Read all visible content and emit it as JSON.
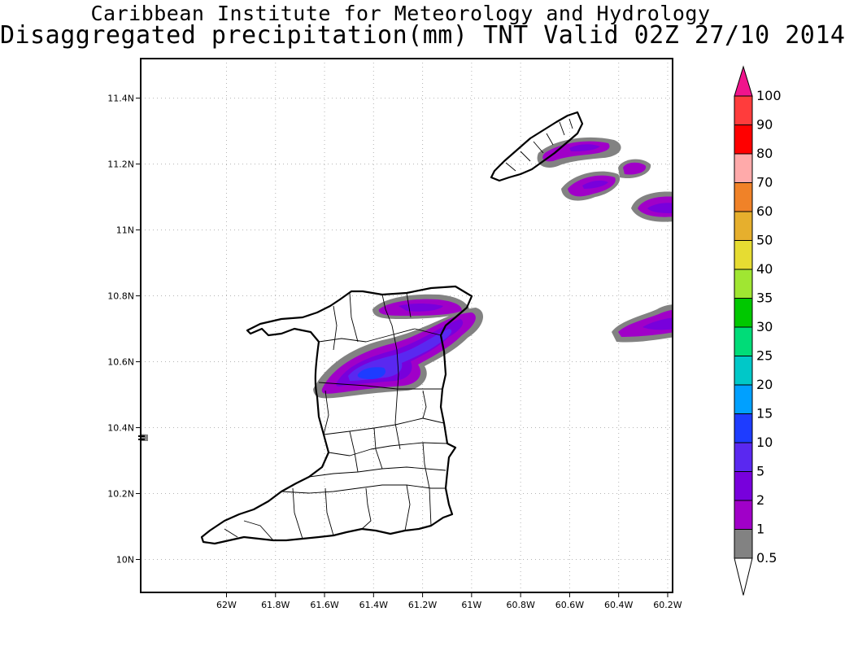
{
  "header": {
    "title": "Caribbean Institute for Meteorology and Hydrology",
    "subtitle": "Disaggregated precipitation(mm) TNT Valid 02Z 27/10 2014"
  },
  "map": {
    "lon_range": [
      -62.35,
      -60.18
    ],
    "lat_range": [
      9.9,
      11.52
    ],
    "x_ticks": [
      {
        "value": -62.0,
        "label": "62W"
      },
      {
        "value": -61.8,
        "label": "61.8W"
      },
      {
        "value": -61.6,
        "label": "61.6W"
      },
      {
        "value": -61.4,
        "label": "61.4W"
      },
      {
        "value": -61.2,
        "label": "61.2W"
      },
      {
        "value": -61.0,
        "label": "61W"
      },
      {
        "value": -60.8,
        "label": "60.8W"
      },
      {
        "value": -60.6,
        "label": "60.6W"
      },
      {
        "value": -60.4,
        "label": "60.4W"
      },
      {
        "value": -60.2,
        "label": "60.2W"
      }
    ],
    "y_ticks": [
      {
        "value": 10.0,
        "label": "10N"
      },
      {
        "value": 10.2,
        "label": "10.2N"
      },
      {
        "value": 10.4,
        "label": "10.4N"
      },
      {
        "value": 10.6,
        "label": "10.6N"
      },
      {
        "value": 10.8,
        "label": "10.8N"
      },
      {
        "value": 11.0,
        "label": "11N"
      },
      {
        "value": 11.2,
        "label": "11.2N"
      },
      {
        "value": 11.4,
        "label": "11.4N"
      }
    ],
    "grid": true
  },
  "colorbar": {
    "levels": [
      {
        "label": "0.5",
        "color": "#ffffff"
      },
      {
        "label": "1",
        "color": "#828282"
      },
      {
        "label": "2",
        "color": "#a000c8"
      },
      {
        "label": "5",
        "color": "#7800dc"
      },
      {
        "label": "10",
        "color": "#5a28f0"
      },
      {
        "label": "15",
        "color": "#1e3cff"
      },
      {
        "label": "20",
        "color": "#00a0ff"
      },
      {
        "label": "25",
        "color": "#00c8c8"
      },
      {
        "label": "30",
        "color": "#00dc78"
      },
      {
        "label": "35",
        "color": "#00c800"
      },
      {
        "label": "40",
        "color": "#a0e632"
      },
      {
        "label": "50",
        "color": "#e6dc32"
      },
      {
        "label": "60",
        "color": "#e6af2d"
      },
      {
        "label": "70",
        "color": "#f08228"
      },
      {
        "label": "80",
        "color": "#ffaaaa"
      },
      {
        "label": "90",
        "color": "#ff0000"
      },
      {
        "label": "100",
        "color": "#ff3c3c"
      }
    ],
    "over_color": "#f0148c"
  }
}
